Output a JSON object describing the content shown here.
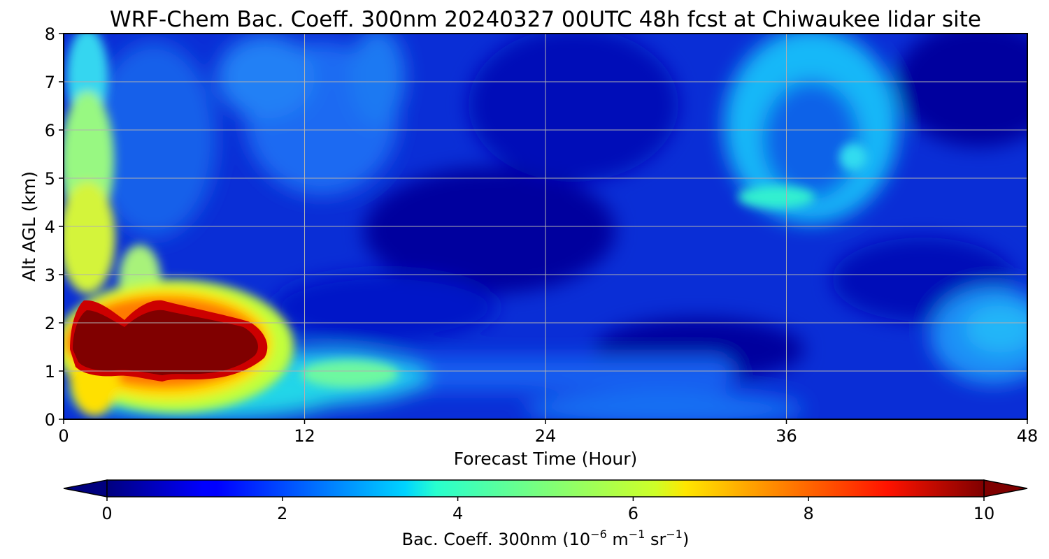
{
  "chart_data": {
    "type": "heatmap",
    "title": "WRF-Chem Bac. Coeff. 300nm  20240327 00UTC 48h fcst at Chiwaukee lidar site",
    "xlabel": "Forecast Time (Hour)",
    "ylabel": "Alt AGL (km)",
    "xlim": [
      0,
      48
    ],
    "ylim": [
      0,
      8
    ],
    "x_ticks": [
      "0",
      "12",
      "24",
      "36",
      "48"
    ],
    "y_ticks": [
      "0",
      "1",
      "2",
      "3",
      "4",
      "5",
      "6",
      "7",
      "8"
    ],
    "grid": true,
    "colormap": "jet",
    "colorbar": {
      "label_main": "Bac. Coeff. 300nm  (10",
      "label_exp1": "−6",
      "label_mid": " m",
      "label_exp2": "−1",
      "label_mid2": " sr",
      "label_exp3": "−1",
      "label_end": ")",
      "range": [
        0,
        10
      ],
      "ticks": [
        "0",
        "2",
        "4",
        "6",
        "8",
        "10"
      ],
      "extend": "both",
      "under_color": "#00007f",
      "over_color": "#7f0000"
    },
    "field_features": [
      {
        "feature": "thick aerosol layer (saturated)",
        "x_range_h": [
          0.3,
          10
        ],
        "y_range_km": [
          0.9,
          2.3
        ],
        "value": 10
      },
      {
        "feature": "elevated column near start",
        "x_h": 1.2,
        "y_range_km": [
          0,
          8
        ],
        "value": 6
      },
      {
        "feature": "low-level plume",
        "x_range_h": [
          10,
          18
        ],
        "y_range_km": [
          0.3,
          1.2
        ],
        "value": 4
      },
      {
        "feature": "upper layer ring",
        "x_range_h": [
          33,
          42
        ],
        "y_range_km": [
          4.2,
          7.8
        ],
        "value": 3.5
      },
      {
        "feature": "max in upper ring",
        "x_h": 36,
        "y_km": 4.6,
        "value": 4
      },
      {
        "feature": "late low layer",
        "x_range_h": [
          43,
          48
        ],
        "y_range_km": [
          0.5,
          2.2
        ],
        "value": 2.5
      },
      {
        "feature": "background",
        "value": 1
      }
    ]
  }
}
